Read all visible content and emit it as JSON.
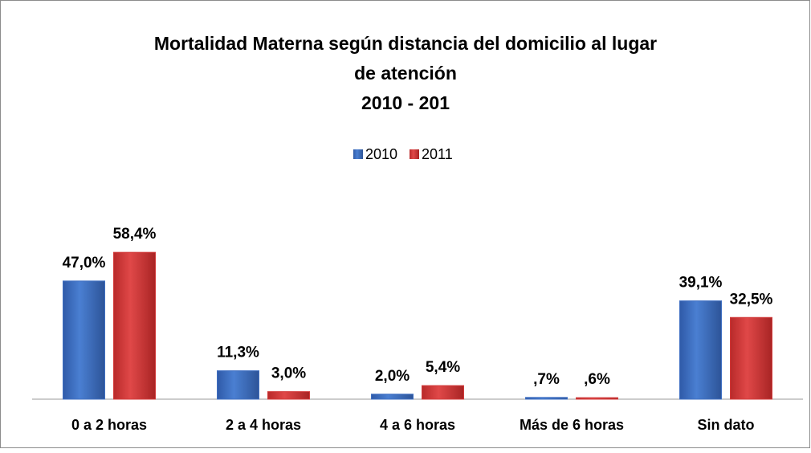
{
  "chart_data": {
    "type": "bar",
    "title": [
      "Mortalidad Materna según distancia del domicilio al lugar",
      "de atención",
      "2010 - 201"
    ],
    "categories": [
      "0 a 2 horas",
      "2 a 4 horas",
      "4 a 6 horas",
      "Más de 6 horas",
      "Sin dato"
    ],
    "series": [
      {
        "name": "2010",
        "color": "#3f6fc2",
        "values": [
          47.0,
          11.3,
          2.0,
          0.7,
          39.1
        ],
        "value_labels": [
          "47,0%",
          "11,3%",
          "2,0%",
          ",7%",
          "39,1%"
        ]
      },
      {
        "name": "2011",
        "color": "#d23a3a",
        "values": [
          58.4,
          3.0,
          5.4,
          0.6,
          32.5
        ],
        "value_labels": [
          "58,4%",
          "3,0%",
          "5,4%",
          ",6%",
          "32,5%"
        ]
      }
    ],
    "ylim": [
      0,
      65
    ],
    "legend": "top"
  }
}
